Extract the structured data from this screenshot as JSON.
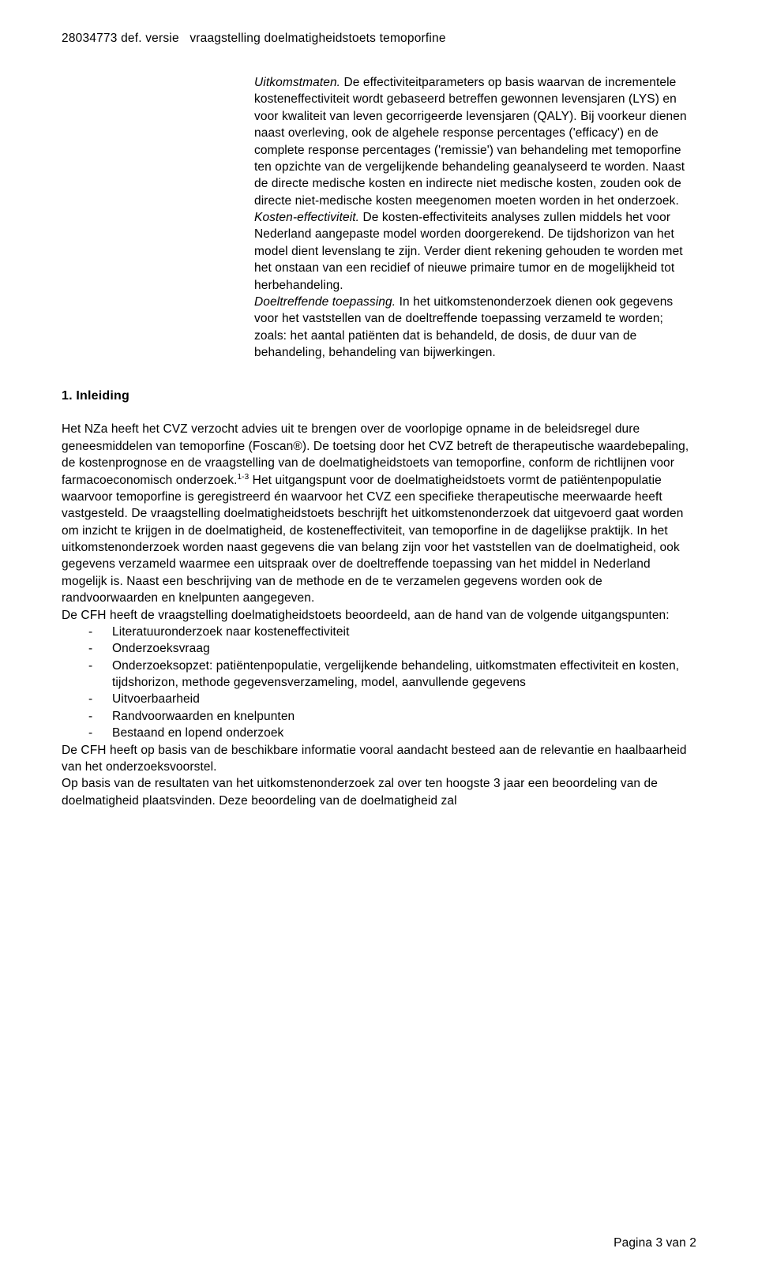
{
  "header": {
    "left": "28034773 def. versie",
    "right": "vraagstelling doelmatigheidstoets temoporfine"
  },
  "indented": {
    "p1_heading": "Uitkomstmaten.",
    "p1_body": " De effectiviteitparameters op basis waarvan de incrementele kosteneffectiviteit wordt gebaseerd betreffen gewonnen levensjaren (LYS) en voor kwaliteit van leven gecorrigeerde levensjaren (QALY). Bij voorkeur dienen naast overleving, ook de algehele response percentages ('efficacy') en de complete response percentages ('remissie') van behandeling met temoporfine ten opzichte van de vergelijkende behandeling geanalyseerd te worden. Naast de directe medische kosten en indirecte niet medische kosten, zouden ook de directe niet-medische kosten meegenomen moeten worden in het onderzoek.",
    "p2_heading": "Kosten-effectiviteit.",
    "p2_body": " De kosten-effectiviteits analyses zullen middels het voor Nederland aangepaste model worden doorgerekend. De tijdshorizon van het model dient levenslang te zijn. Verder dient rekening gehouden te worden met het onstaan van een recidief of nieuwe primaire tumor en de mogelijkheid tot herbehandeling.",
    "p3_heading": "Doeltreffende toepassing.",
    "p3_body": " In het uitkomstenonderzoek dienen ook gegevens voor het vaststellen van de doeltreffende toepassing verzameld te worden; zoals: het aantal patiënten dat is behandeld, de dosis, de duur van de behandeling, behandeling van bijwerkingen."
  },
  "section": {
    "heading": "1. Inleiding",
    "para1_a": "Het NZa heeft het CVZ verzocht advies uit te brengen over de voorlopige opname in de beleidsregel dure geneesmiddelen van temoporfine (Foscan®). De toetsing door het CVZ betreft de therapeutische waardebepaling, de kostenprognose en de vraagstelling van de doelmatigheidstoets van temoporfine, conform de richtlijnen voor farmacoeconomisch onderzoek.",
    "sup": "1-3",
    "para1_b": " Het uitgangspunt voor de doelmatigheidstoets vormt de patiëntenpopulatie waarvoor temoporfine is geregistreerd én waarvoor het CVZ een specifieke therapeutische meerwaarde heeft vastgesteld. De vraagstelling doelmatigheidstoets beschrijft het uitkomstenonderzoek dat uitgevoerd gaat worden om inzicht te krijgen in de doelmatigheid, de kosteneffectiviteit, van temoporfine in de dagelijkse praktijk. In het uitkomstenonderzoek worden naast gegevens die van belang zijn voor het vaststellen van de doelmatigheid, ook gegevens verzameld waarmee een uitspraak over de doeltreffende toepassing van het middel in Nederland mogelijk is. Naast een beschrijving van de methode en de te verzamelen gegevens worden ook de randvoorwaarden en knelpunten aangegeven.",
    "para2": "De CFH heeft de vraagstelling doelmatigheidstoets beoordeeld, aan de hand van de volgende uitgangspunten:",
    "bullets": [
      "Literatuuronderzoek naar kosteneffectiviteit",
      "Onderzoeksvraag",
      "Onderzoeksopzet: patiëntenpopulatie, vergelijkende behandeling, uitkomstmaten effectiviteit en kosten, tijdshorizon, methode gegevensverzameling, model, aanvullende gegevens",
      "Uitvoerbaarheid",
      "Randvoorwaarden en knelpunten",
      "Bestaand en lopend onderzoek"
    ],
    "para3": "De CFH heeft op basis van de beschikbare informatie vooral aandacht besteed aan de relevantie en haalbaarheid van het onderzoeksvoorstel.",
    "para4": "Op basis van de resultaten van het uitkomstenonderzoek zal over ten hoogste 3 jaar een beoordeling van de doelmatigheid plaatsvinden. Deze beoordeling van de doelmatigheid zal"
  },
  "footer": "Pagina 3 van 2"
}
